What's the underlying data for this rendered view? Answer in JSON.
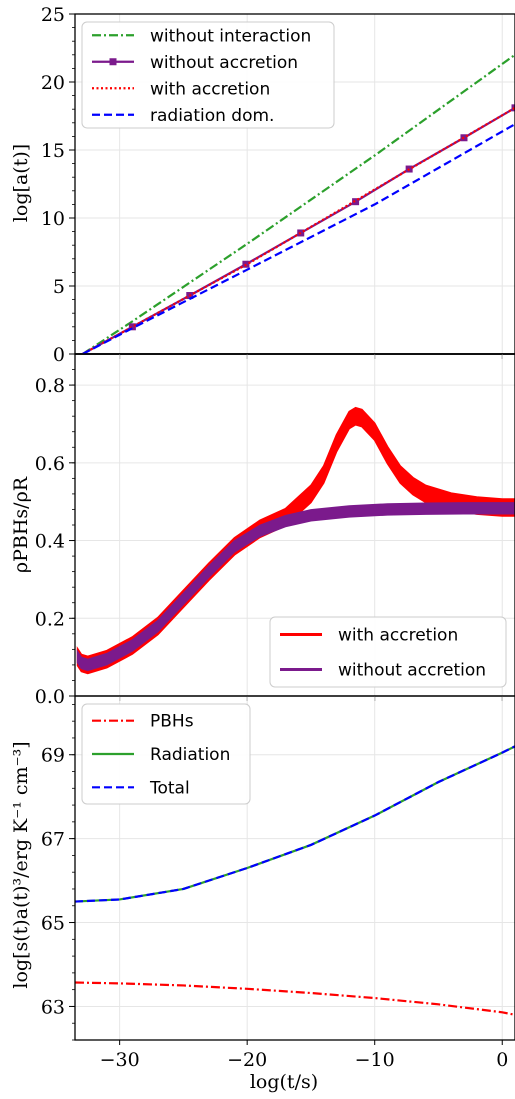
{
  "chart_data": [
    {
      "type": "line",
      "panel": "top",
      "xlabel": "",
      "ylabel": "log[a(t)]",
      "xlim": [
        -33.5,
        1
      ],
      "ylim": [
        0,
        25
      ],
      "yticks": [
        0,
        5,
        10,
        15,
        20,
        25
      ],
      "ytick_labels": [
        "0",
        "5",
        "10",
        "15",
        "20",
        "25"
      ],
      "grid": true,
      "legend_position": "top-left",
      "reference_line": {
        "y": 0,
        "color": "#000000"
      },
      "series": [
        {
          "name": "without interaction",
          "color": "#2ca02c",
          "style": "dashdot",
          "marker": "none",
          "x": [
            -32.9,
            -29,
            -20,
            -10,
            1
          ],
          "y": [
            0,
            2.4,
            8.1,
            14.6,
            22.0
          ]
        },
        {
          "name": "without accretion",
          "color": "#7b1a8c",
          "style": "solid",
          "marker": "square",
          "x": [
            -32.9,
            -29,
            -24.5,
            -20.1,
            -15.8,
            -11.5,
            -7.3,
            -3.0,
            1
          ],
          "y": [
            0,
            2.0,
            4.3,
            6.6,
            8.9,
            11.2,
            13.6,
            15.9,
            18.1
          ]
        },
        {
          "name": "with accretion",
          "color": "#ff0000",
          "style": "dotted",
          "marker": "none",
          "x": [
            -32.9,
            -29,
            -20,
            -10,
            1
          ],
          "y": [
            0,
            2.0,
            6.6,
            12.1,
            18.1
          ]
        },
        {
          "name": "radiation dom.",
          "color": "#0000ff",
          "style": "dashed",
          "marker": "none",
          "x": [
            -32.9,
            -29,
            -20,
            -10,
            1
          ],
          "y": [
            0,
            1.9,
            6.2,
            11.0,
            16.9
          ]
        }
      ]
    },
    {
      "type": "line",
      "panel": "middle",
      "xlabel": "",
      "ylabel": "ρPBHs/ρR",
      "xlim": [
        -33.5,
        1
      ],
      "ylim": [
        0,
        0.88
      ],
      "yticks": [
        0,
        0.2,
        0.4,
        0.6,
        0.8
      ],
      "ytick_labels": [
        "0.0",
        "0.2",
        "0.4",
        "0.6",
        "0.8"
      ],
      "grid": true,
      "legend_position": "bottom-right",
      "series": [
        {
          "name": "with accretion",
          "color": "#ff0000",
          "style": "solid",
          "band_width": 0.022,
          "x": [
            -33.3,
            -33,
            -32.5,
            -31,
            -29,
            -27,
            -25,
            -23,
            -21,
            -19,
            -17,
            -15,
            -14,
            -13,
            -12,
            -11.5,
            -11,
            -10,
            -9,
            -8,
            -7,
            -6,
            -4,
            -2,
            0,
            1
          ],
          "y": [
            0.1,
            0.085,
            0.08,
            0.095,
            0.13,
            0.18,
            0.25,
            0.32,
            0.385,
            0.43,
            0.46,
            0.52,
            0.57,
            0.65,
            0.71,
            0.72,
            0.715,
            0.68,
            0.62,
            0.57,
            0.54,
            0.52,
            0.5,
            0.49,
            0.485,
            0.485
          ]
        },
        {
          "name": "without accretion",
          "color": "#7b1a8c",
          "style": "solid",
          "band_width": 0.014,
          "x": [
            -33.3,
            -33,
            -32.5,
            -31,
            -29,
            -27,
            -25,
            -23,
            -21,
            -19,
            -17,
            -15,
            -12,
            -9,
            -6,
            -3,
            0,
            1
          ],
          "y": [
            0.1,
            0.085,
            0.08,
            0.095,
            0.13,
            0.18,
            0.25,
            0.32,
            0.385,
            0.425,
            0.45,
            0.465,
            0.475,
            0.48,
            0.482,
            0.483,
            0.483,
            0.483
          ]
        }
      ]
    },
    {
      "type": "line",
      "panel": "bottom",
      "xlabel": "log(t/s)",
      "ylabel": "log[s(t)a(t)³/erg K⁻¹ cm⁻³]",
      "xlim": [
        -33.5,
        1
      ],
      "ylim": [
        62.2,
        70.4
      ],
      "yticks": [
        63,
        65,
        67,
        69
      ],
      "ytick_labels": [
        "63",
        "65",
        "67",
        "69"
      ],
      "xticks": [
        -30,
        -20,
        -10,
        0
      ],
      "xtick_labels": [
        "−30",
        "−20",
        "−10",
        "0"
      ],
      "grid": true,
      "legend_position": "top-left",
      "series": [
        {
          "name": "PBHs",
          "color": "#ff0000",
          "style": "dashdot",
          "x": [
            -33.5,
            -30,
            -25,
            -20,
            -15,
            -10,
            -5,
            0,
            1
          ],
          "y": [
            63.57,
            63.55,
            63.5,
            63.42,
            63.32,
            63.2,
            63.05,
            62.86,
            62.8
          ]
        },
        {
          "name": "Radiation",
          "color": "#2ca02c",
          "style": "solid",
          "x": [
            -33.5,
            -30,
            -25,
            -20,
            -15,
            -10,
            -5,
            0,
            1
          ],
          "y": [
            65.5,
            65.55,
            65.8,
            66.3,
            66.85,
            67.55,
            68.35,
            69.05,
            69.2
          ]
        },
        {
          "name": "Total",
          "color": "#0000ff",
          "style": "dashed",
          "x": [
            -33.5,
            -30,
            -25,
            -20,
            -15,
            -10,
            -5,
            0,
            1
          ],
          "y": [
            65.5,
            65.55,
            65.8,
            66.3,
            66.85,
            67.55,
            68.35,
            69.05,
            69.2
          ]
        }
      ]
    }
  ]
}
